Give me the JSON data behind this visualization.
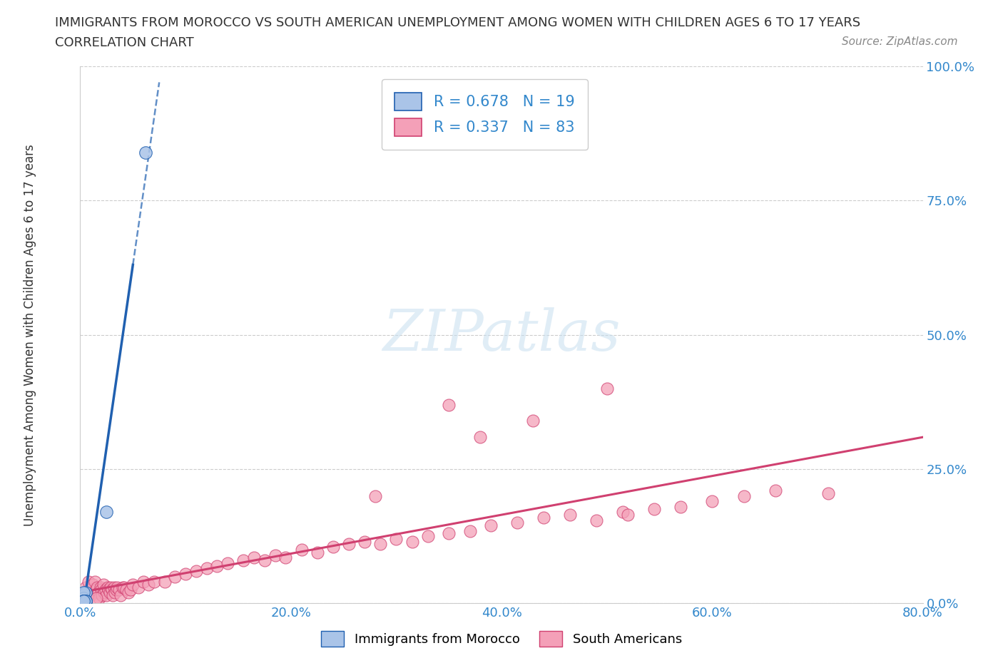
{
  "title_line1": "IMMIGRANTS FROM MOROCCO VS SOUTH AMERICAN UNEMPLOYMENT AMONG WOMEN WITH CHILDREN AGES 6 TO 17 YEARS",
  "title_line2": "CORRELATION CHART",
  "source": "Source: ZipAtlas.com",
  "xlabel": "Immigrants from Morocco",
  "ylabel": "Unemployment Among Women with Children Ages 6 to 17 years",
  "xlim": [
    0.0,
    0.8
  ],
  "ylim": [
    0.0,
    1.0
  ],
  "xticks": [
    0.0,
    0.2,
    0.4,
    0.6,
    0.8
  ],
  "xtick_labels": [
    "0.0%",
    "20.0%",
    "40.0%",
    "60.0%",
    "80.0%"
  ],
  "yticks": [
    0.0,
    0.25,
    0.5,
    0.75,
    1.0
  ],
  "ytick_labels": [
    "0.0%",
    "25.0%",
    "50.0%",
    "75.0%",
    "100.0%"
  ],
  "morocco_R": 0.678,
  "morocco_N": 19,
  "south_R": 0.337,
  "south_N": 83,
  "morocco_color": "#aac4e8",
  "morocco_line_color": "#2060b0",
  "south_color": "#f4a0b8",
  "south_line_color": "#d04070",
  "watermark_text": "ZIPatlas",
  "watermark_color": "#c8dff0",
  "background_color": "#ffffff",
  "grid_color": "#cccccc",
  "title_color": "#333333",
  "axis_label_color": "#333333",
  "tick_color": "#3388cc",
  "source_color": "#888888",
  "legend_text_color": "#333333",
  "legend_RN_color": "#3388cc",
  "morocco_scatter_x": [
    0.003,
    0.004,
    0.005,
    0.003,
    0.004,
    0.005,
    0.003,
    0.004,
    0.003,
    0.004,
    0.005,
    0.003,
    0.004,
    0.003,
    0.004,
    0.005,
    0.003,
    0.062,
    0.025
  ],
  "morocco_scatter_y": [
    0.015,
    0.005,
    0.02,
    0.005,
    0.0,
    0.005,
    0.01,
    0.005,
    0.02,
    0.005,
    0.005,
    0.005,
    0.0,
    0.005,
    0.005,
    0.005,
    0.005,
    0.84,
    0.17
  ],
  "south_scatter_x": [
    0.005,
    0.007,
    0.008,
    0.01,
    0.01,
    0.012,
    0.013,
    0.014,
    0.015,
    0.016,
    0.017,
    0.018,
    0.019,
    0.02,
    0.021,
    0.022,
    0.023,
    0.024,
    0.025,
    0.026,
    0.027,
    0.028,
    0.029,
    0.03,
    0.031,
    0.032,
    0.033,
    0.034,
    0.035,
    0.037,
    0.038,
    0.04,
    0.042,
    0.044,
    0.046,
    0.048,
    0.05,
    0.055,
    0.06,
    0.065,
    0.07,
    0.08,
    0.09,
    0.1,
    0.11,
    0.12,
    0.13,
    0.14,
    0.155,
    0.165,
    0.175,
    0.185,
    0.195,
    0.21,
    0.225,
    0.24,
    0.255,
    0.27,
    0.285,
    0.3,
    0.315,
    0.33,
    0.35,
    0.37,
    0.39,
    0.415,
    0.44,
    0.465,
    0.49,
    0.515,
    0.545,
    0.57,
    0.6,
    0.63,
    0.66,
    0.43,
    0.38,
    0.28,
    0.35,
    0.5,
    0.71,
    0.52,
    0.015
  ],
  "south_scatter_y": [
    0.03,
    0.02,
    0.04,
    0.025,
    0.015,
    0.035,
    0.02,
    0.04,
    0.025,
    0.03,
    0.02,
    0.01,
    0.03,
    0.025,
    0.015,
    0.035,
    0.02,
    0.025,
    0.015,
    0.03,
    0.025,
    0.02,
    0.03,
    0.025,
    0.015,
    0.03,
    0.02,
    0.025,
    0.03,
    0.025,
    0.015,
    0.03,
    0.03,
    0.025,
    0.02,
    0.025,
    0.035,
    0.03,
    0.04,
    0.035,
    0.04,
    0.04,
    0.05,
    0.055,
    0.06,
    0.065,
    0.07,
    0.075,
    0.08,
    0.085,
    0.08,
    0.09,
    0.085,
    0.1,
    0.095,
    0.105,
    0.11,
    0.115,
    0.11,
    0.12,
    0.115,
    0.125,
    0.13,
    0.135,
    0.145,
    0.15,
    0.16,
    0.165,
    0.155,
    0.17,
    0.175,
    0.18,
    0.19,
    0.2,
    0.21,
    0.34,
    0.31,
    0.2,
    0.37,
    0.4,
    0.205,
    0.165,
    0.01
  ]
}
